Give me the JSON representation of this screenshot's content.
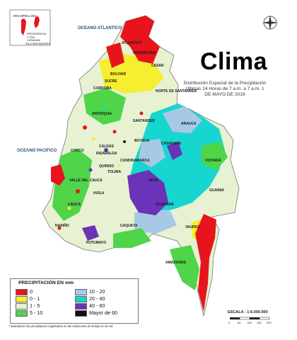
{
  "map": {
    "title": "Clima",
    "subtitle": "Distribución Espacial de la Precipitación Últimas 24 Horas de 7 a.m. a 7 a.m. 1 DE MAYO DE 2019",
    "oceans": {
      "atlantic": "OCEANO ATLANTICO",
      "pacific": "OCEANO PACIFICO"
    },
    "inset": {
      "label_1": "ARCHIPIELAGO",
      "label_2": "PROVIDENCIA Y STA CATALINA",
      "label_3": "ISLA SAN ANDRES"
    },
    "place_labels": [
      "ATLANTICO",
      "MAGDALENA",
      "CESAR",
      "BOLIVAR",
      "CORDOBA",
      "SUCRE",
      "ANTIOQUIA",
      "NORTE DE SANTANDER",
      "SANTANDER",
      "ARAUCA",
      "CHOCO",
      "BOYACA",
      "CASANARE",
      "CALDAS",
      "RISARALDA",
      "QUINDIO",
      "CUNDINAMARCA",
      "META",
      "VICHADA",
      "TOLIMA",
      "VALLE DEL CAUCA",
      "GUAINIA",
      "HUILA",
      "CAUCA",
      "GUAVIARE",
      "NARIÑO",
      "CAQUETA",
      "VAUPES",
      "PUTUMAYO",
      "AMAZONAS"
    ],
    "scale_text": "ESCALA : 1:6.000.000",
    "scale_km": [
      "0",
      "50",
      "100",
      "150",
      "200"
    ]
  },
  "legend": {
    "title": "PRECIPITACIÓN EN mm",
    "items": [
      {
        "label": "0",
        "color": "#e8141c"
      },
      {
        "label": "0 - 1",
        "color": "#f6ee2e"
      },
      {
        "label": "1 - 5",
        "color": "#e7f2d2"
      },
      {
        "label": "5 - 10",
        "color": "#4fd44a"
      },
      {
        "label": "10 - 20",
        "color": "#a8c9e6"
      },
      {
        "label": "20 - 40",
        "color": "#17d6d0"
      },
      {
        "label": "40 - 60",
        "color": "#6a33b8"
      },
      {
        "label": "Mayor de 60",
        "color": "#111111"
      }
    ],
    "note": "* Indicadores de precipitación registrados en las estaciones de tiempo en la red."
  }
}
